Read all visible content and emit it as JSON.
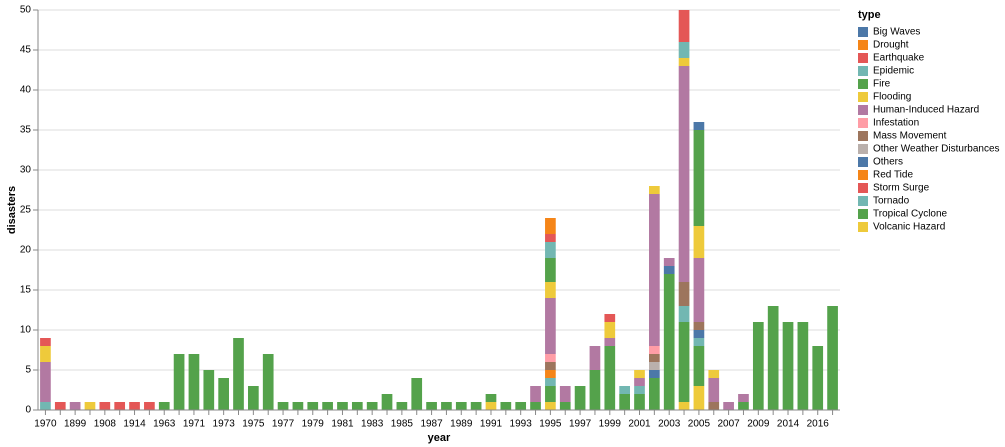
{
  "chart_data": {
    "type": "stacked-bar",
    "x_label": "year",
    "y_label": "disasters",
    "legend_title": "type",
    "ylim": [
      0,
      50
    ],
    "yticks": [
      0,
      5,
      10,
      15,
      20,
      25,
      30,
      35,
      40,
      45,
      50
    ],
    "grid": true,
    "legend": "right",
    "categories": [
      "1970",
      null,
      "1899",
      null,
      "1908",
      null,
      "1914",
      null,
      "1963",
      null,
      "1971",
      null,
      "1973",
      null,
      "1975",
      null,
      "1977",
      null,
      "1979",
      null,
      "1981",
      null,
      "1983",
      null,
      "1985",
      null,
      "1987",
      null,
      "1989",
      null,
      "1991",
      null,
      "1993",
      null,
      "1995",
      null,
      "1997",
      null,
      "1999",
      null,
      "2001",
      null,
      "2003",
      null,
      "2005",
      null,
      "2007",
      null,
      "2009",
      null,
      "2014",
      null,
      "2016",
      null
    ],
    "series": [
      {
        "name": "Big Waves",
        "color": "#4c78a8",
        "values": [
          null,
          null,
          null,
          null,
          null,
          null,
          null,
          null,
          null,
          null,
          null,
          null,
          null,
          null,
          null,
          null,
          null,
          null,
          null,
          null,
          null,
          null,
          null,
          null,
          null,
          null,
          null,
          null,
          null,
          null,
          null,
          null,
          null,
          null,
          null,
          null,
          null,
          null,
          null,
          null,
          null,
          null,
          null,
          null,
          1,
          null,
          null,
          null,
          null,
          null,
          null,
          null,
          null,
          null
        ]
      },
      {
        "name": "Drought",
        "color": "#f58518",
        "values": [
          null,
          null,
          null,
          null,
          null,
          null,
          null,
          null,
          null,
          null,
          null,
          null,
          null,
          null,
          null,
          null,
          null,
          null,
          null,
          null,
          null,
          null,
          null,
          null,
          null,
          null,
          null,
          null,
          null,
          null,
          null,
          null,
          null,
          null,
          2,
          null,
          null,
          null,
          null,
          null,
          null,
          null,
          null,
          null,
          null,
          null,
          null,
          null,
          null,
          null,
          null,
          null,
          null,
          null
        ]
      },
      {
        "name": "Earthquake",
        "color": "#e45756",
        "values": [
          1,
          null,
          null,
          null,
          null,
          null,
          null,
          null,
          null,
          null,
          null,
          null,
          null,
          null,
          null,
          null,
          null,
          null,
          null,
          null,
          null,
          null,
          null,
          null,
          null,
          null,
          null,
          null,
          null,
          null,
          null,
          null,
          null,
          null,
          1,
          null,
          null,
          null,
          1,
          null,
          null,
          null,
          null,
          4,
          null,
          null,
          null,
          null,
          null,
          null,
          null,
          null,
          null,
          null
        ]
      },
      {
        "name": "Epidemic",
        "color": "#72b7b2",
        "values": [
          null,
          null,
          null,
          null,
          null,
          null,
          null,
          null,
          null,
          null,
          null,
          null,
          null,
          null,
          null,
          null,
          null,
          null,
          null,
          null,
          null,
          null,
          null,
          null,
          null,
          null,
          null,
          null,
          null,
          null,
          null,
          null,
          null,
          null,
          2,
          null,
          null,
          null,
          null,
          null,
          null,
          null,
          null,
          2,
          null,
          null,
          null,
          null,
          null,
          null,
          null,
          null,
          null,
          null
        ]
      },
      {
        "name": "Fire",
        "color": "#54a24b",
        "values": [
          null,
          null,
          null,
          null,
          null,
          null,
          null,
          null,
          null,
          null,
          null,
          null,
          null,
          null,
          null,
          null,
          null,
          null,
          null,
          null,
          null,
          null,
          null,
          null,
          null,
          null,
          null,
          null,
          null,
          null,
          null,
          null,
          null,
          null,
          3,
          null,
          null,
          null,
          null,
          null,
          null,
          null,
          null,
          null,
          12,
          null,
          null,
          null,
          null,
          null,
          null,
          null,
          null,
          null
        ]
      },
      {
        "name": "Flooding",
        "color": "#eeca3b",
        "values": [
          2,
          null,
          null,
          null,
          null,
          null,
          null,
          null,
          null,
          null,
          null,
          null,
          null,
          null,
          null,
          null,
          null,
          null,
          null,
          null,
          null,
          null,
          null,
          null,
          null,
          null,
          null,
          null,
          null,
          null,
          null,
          null,
          null,
          null,
          2,
          null,
          null,
          null,
          2,
          null,
          1,
          1,
          null,
          1,
          4,
          1,
          null,
          null,
          null,
          null,
          null,
          null,
          null,
          null
        ]
      },
      {
        "name": "Human-Induced Hazard",
        "color": "#b279a2",
        "values": [
          5,
          null,
          1,
          null,
          null,
          null,
          null,
          null,
          null,
          null,
          null,
          null,
          null,
          null,
          null,
          null,
          null,
          null,
          null,
          null,
          null,
          null,
          null,
          null,
          null,
          null,
          null,
          null,
          null,
          null,
          null,
          null,
          null,
          2,
          7,
          2,
          null,
          3,
          1,
          null,
          1,
          19,
          1,
          27,
          8,
          3,
          1,
          1,
          null,
          null,
          null,
          null,
          null,
          null
        ]
      },
      {
        "name": "Infestation",
        "color": "#ff9da6",
        "values": [
          null,
          null,
          null,
          null,
          null,
          null,
          null,
          null,
          null,
          null,
          null,
          null,
          null,
          null,
          null,
          null,
          null,
          null,
          null,
          null,
          null,
          null,
          null,
          null,
          null,
          null,
          null,
          null,
          null,
          null,
          null,
          null,
          null,
          null,
          1,
          null,
          null,
          null,
          null,
          null,
          null,
          1,
          null,
          null,
          null,
          null,
          null,
          null,
          null,
          null,
          null,
          null,
          null,
          null
        ]
      },
      {
        "name": "Mass Movement",
        "color": "#9d755d",
        "values": [
          null,
          null,
          null,
          null,
          null,
          null,
          null,
          null,
          null,
          null,
          null,
          null,
          null,
          null,
          null,
          null,
          null,
          null,
          null,
          null,
          null,
          null,
          null,
          null,
          null,
          null,
          null,
          null,
          null,
          null,
          null,
          null,
          null,
          null,
          1,
          null,
          null,
          null,
          null,
          null,
          null,
          1,
          null,
          3,
          1,
          1,
          null,
          null,
          null,
          null,
          null,
          null,
          null,
          null
        ]
      },
      {
        "name": "Other Weather Disturbances",
        "color": "#bab0ac",
        "values": [
          null,
          null,
          null,
          null,
          null,
          null,
          null,
          null,
          null,
          null,
          null,
          null,
          null,
          null,
          null,
          null,
          null,
          null,
          null,
          null,
          null,
          null,
          null,
          null,
          null,
          null,
          null,
          null,
          null,
          null,
          null,
          null,
          null,
          null,
          null,
          null,
          null,
          null,
          null,
          null,
          null,
          1,
          null,
          null,
          null,
          null,
          null,
          null,
          null,
          null,
          null,
          null,
          null,
          null
        ]
      },
      {
        "name": "Others",
        "color": "#4c78a8",
        "values": [
          null,
          null,
          null,
          null,
          null,
          null,
          null,
          null,
          null,
          null,
          null,
          null,
          null,
          null,
          null,
          null,
          null,
          null,
          null,
          null,
          null,
          null,
          null,
          null,
          null,
          null,
          null,
          null,
          null,
          null,
          null,
          null,
          null,
          null,
          null,
          null,
          null,
          null,
          null,
          null,
          null,
          1,
          1,
          null,
          1,
          null,
          null,
          null,
          null,
          null,
          null,
          null,
          null,
          null
        ]
      },
      {
        "name": "Red Tide",
        "color": "#f58518",
        "values": [
          null,
          null,
          null,
          null,
          null,
          null,
          null,
          null,
          null,
          null,
          null,
          null,
          null,
          null,
          null,
          null,
          null,
          null,
          null,
          null,
          null,
          null,
          null,
          null,
          null,
          null,
          null,
          null,
          null,
          null,
          null,
          null,
          null,
          null,
          1,
          null,
          null,
          null,
          null,
          null,
          null,
          null,
          null,
          null,
          null,
          null,
          null,
          null,
          null,
          null,
          null,
          null,
          null,
          null
        ]
      },
      {
        "name": "Storm Surge",
        "color": "#e45756",
        "values": [
          null,
          1,
          null,
          null,
          1,
          1,
          1,
          1,
          null,
          null,
          null,
          null,
          null,
          null,
          null,
          null,
          null,
          null,
          null,
          null,
          null,
          null,
          null,
          null,
          null,
          null,
          null,
          null,
          null,
          null,
          null,
          null,
          null,
          null,
          null,
          null,
          null,
          null,
          null,
          null,
          null,
          null,
          null,
          null,
          null,
          null,
          null,
          null,
          null,
          null,
          null,
          null,
          null,
          null
        ]
      },
      {
        "name": "Tornado",
        "color": "#72b7b2",
        "values": [
          1,
          null,
          null,
          null,
          null,
          null,
          null,
          null,
          null,
          null,
          null,
          null,
          null,
          null,
          null,
          null,
          null,
          null,
          null,
          null,
          null,
          null,
          null,
          null,
          null,
          null,
          null,
          null,
          null,
          null,
          null,
          null,
          null,
          null,
          1,
          null,
          null,
          null,
          null,
          1,
          1,
          null,
          null,
          2,
          1,
          null,
          null,
          null,
          null,
          null,
          null,
          null,
          null,
          null
        ]
      },
      {
        "name": "Tropical Cyclone",
        "color": "#54a24b",
        "values": [
          null,
          null,
          null,
          null,
          null,
          null,
          null,
          null,
          1,
          7,
          7,
          5,
          4,
          9,
          3,
          7,
          1,
          1,
          1,
          1,
          1,
          1,
          1,
          2,
          1,
          4,
          1,
          1,
          1,
          1,
          1,
          1,
          1,
          1,
          2,
          1,
          3,
          5,
          8,
          2,
          2,
          4,
          17,
          10,
          5,
          null,
          null,
          1,
          11,
          13,
          11,
          11,
          8,
          13
        ]
      },
      {
        "name": "Volcanic Hazard",
        "color": "#eeca3b",
        "values": [
          null,
          null,
          null,
          1,
          null,
          null,
          null,
          null,
          null,
          null,
          null,
          null,
          null,
          null,
          null,
          null,
          null,
          null,
          null,
          null,
          null,
          null,
          null,
          null,
          null,
          null,
          null,
          null,
          null,
          null,
          1,
          null,
          null,
          null,
          1,
          null,
          null,
          null,
          null,
          null,
          null,
          null,
          null,
          1,
          3,
          null,
          null,
          null,
          null,
          null,
          null,
          null,
          null,
          null
        ]
      }
    ]
  }
}
